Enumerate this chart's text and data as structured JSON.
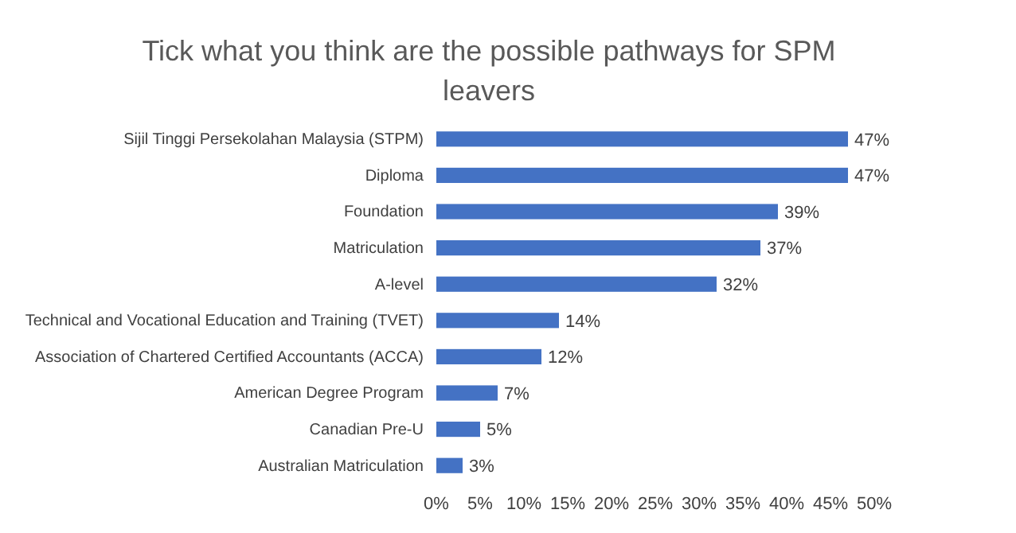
{
  "chart_data": {
    "type": "bar",
    "orientation": "horizontal",
    "title": "Tick what you think are the possible pathways for SPM leavers",
    "categories": [
      "Sijil Tinggi Persekolahan Malaysia (STPM)",
      "Diploma",
      "Foundation",
      "Matriculation",
      "A-level",
      "Technical and Vocational Education and Training (TVET)",
      "Association of Chartered Certified Accountants (ACCA)",
      "American Degree Program",
      "Canadian Pre-U",
      "Australian Matriculation"
    ],
    "values": [
      47,
      47,
      39,
      37,
      32,
      14,
      12,
      7,
      5,
      3
    ],
    "value_labels": [
      "47%",
      "47%",
      "39%",
      "37%",
      "32%",
      "14%",
      "12%",
      "7%",
      "5%",
      "3%"
    ],
    "color": "#4472c4",
    "xlim": [
      0,
      50
    ],
    "xticks": [
      {
        "value": 0,
        "label": "0%"
      },
      {
        "value": 5,
        "label": "5%"
      },
      {
        "value": 10,
        "label": "10%"
      },
      {
        "value": 15,
        "label": "15%"
      },
      {
        "value": 20,
        "label": "20%"
      },
      {
        "value": 25,
        "label": "25%"
      },
      {
        "value": 30,
        "label": "30%"
      },
      {
        "value": 35,
        "label": "35%"
      },
      {
        "value": 40,
        "label": "40%"
      },
      {
        "value": 45,
        "label": "45%"
      },
      {
        "value": 50,
        "label": "50%"
      }
    ]
  }
}
